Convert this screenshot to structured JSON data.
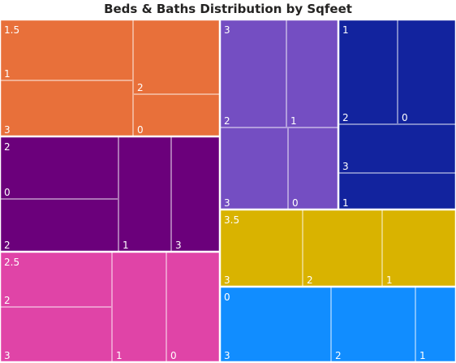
{
  "chart_data": {
    "type": "treemap",
    "title": "Beds & Baths Distribution by Sqfeet",
    "groups": [
      {
        "label": "1.5",
        "color": "#E8703A",
        "children": [
          {
            "label": "1"
          },
          {
            "label": "3"
          },
          {
            "label": "2"
          },
          {
            "label": "0"
          }
        ]
      },
      {
        "label": "2",
        "color": "#6B007B",
        "children": [
          {
            "label": "0"
          },
          {
            "label": "2"
          },
          {
            "label": "1"
          },
          {
            "label": "3"
          }
        ]
      },
      {
        "label": "2.5",
        "color": "#E044A7",
        "children": [
          {
            "label": "2"
          },
          {
            "label": "3"
          },
          {
            "label": "1"
          },
          {
            "label": "0"
          }
        ]
      },
      {
        "label": "3",
        "color": "#744EC2",
        "children": [
          {
            "label": "2"
          },
          {
            "label": "1"
          },
          {
            "label": "3"
          },
          {
            "label": "0"
          }
        ]
      },
      {
        "label": "1",
        "color": "#12239E",
        "children": [
          {
            "label": "2"
          },
          {
            "label": "0"
          },
          {
            "label": "3"
          },
          {
            "label": "1"
          }
        ]
      },
      {
        "label": "3.5",
        "color": "#D9B300",
        "children": [
          {
            "label": "3"
          },
          {
            "label": "2"
          },
          {
            "label": "1"
          }
        ]
      },
      {
        "label": "0",
        "color": "#118DFF",
        "children": [
          {
            "label": "3"
          },
          {
            "label": "2"
          },
          {
            "label": "1"
          }
        ]
      }
    ]
  }
}
